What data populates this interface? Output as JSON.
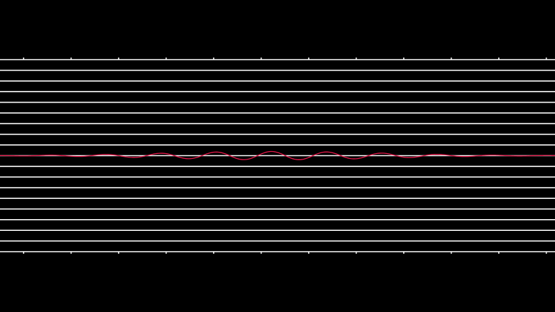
{
  "colors": {
    "background": "#000000",
    "grid_line": "#ffffff",
    "waveform": "#e8174a"
  },
  "grid": {
    "horizontal_line_count": 19,
    "top_tick_count": 12,
    "bottom_tick_count": 12
  },
  "waveform": {
    "type": "wave-packet",
    "amplitude": 6,
    "cycles_visible": 10,
    "envelope": "gaussian",
    "phase_shift": 0.3
  }
}
